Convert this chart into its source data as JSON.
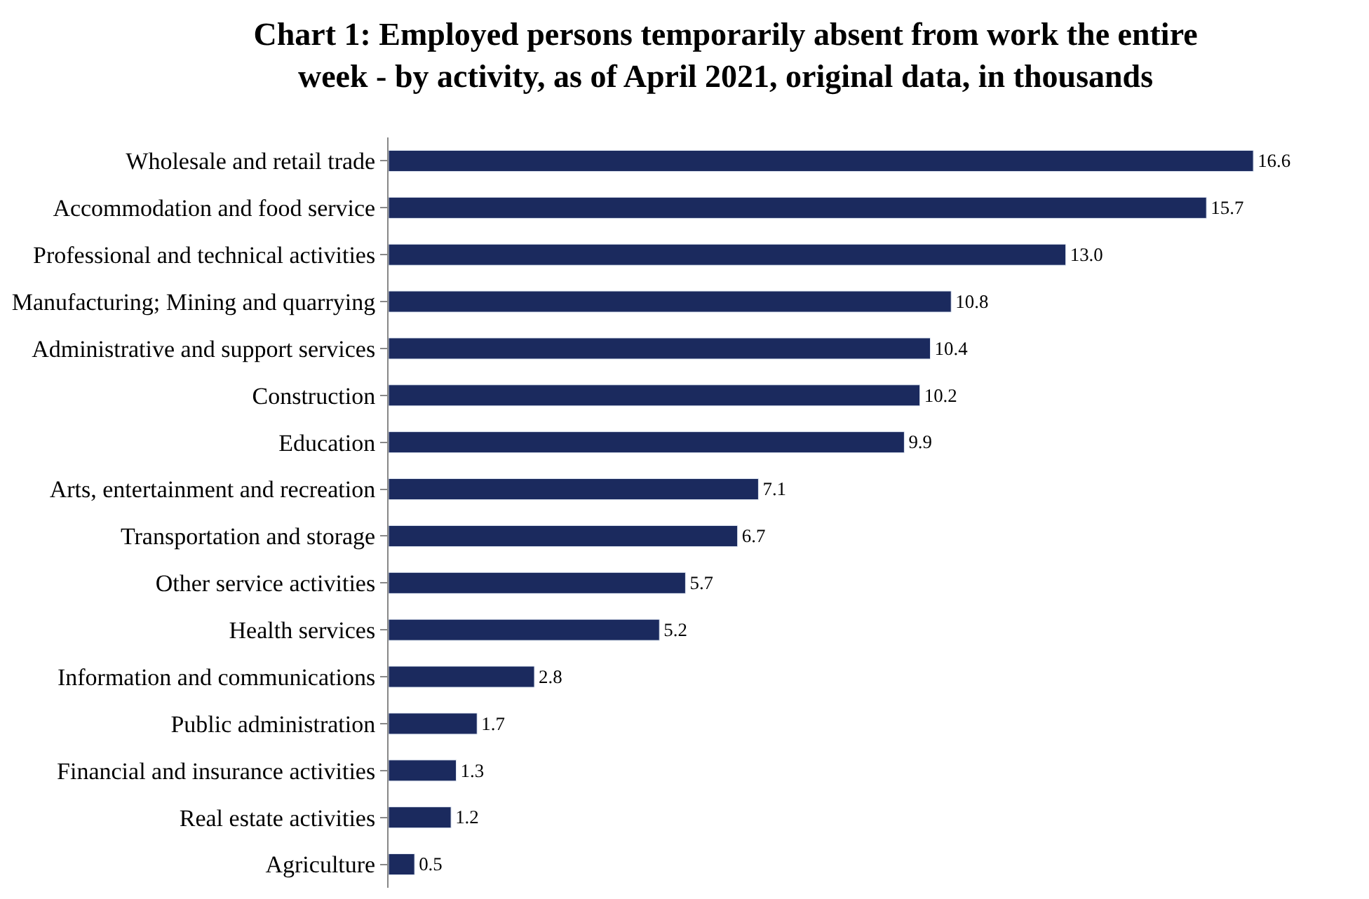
{
  "chart_data": {
    "type": "bar",
    "orientation": "horizontal",
    "title": "Chart 1: Employed persons temporarily absent from work the entire\nweek - by activity, as of April 2021, original data, in thousands",
    "categories": [
      "Wholesale and retail trade",
      "Accommodation and food service",
      "Professional and technical activities",
      "Manufacturing; Mining and quarrying",
      "Administrative and support services",
      "Construction",
      "Education",
      "Arts, entertainment and recreation",
      "Transportation and storage",
      "Other service activities",
      "Health services",
      "Information and communications",
      "Public administration",
      "Financial and insurance activities",
      "Real estate activities",
      "Agriculture"
    ],
    "values": [
      16.6,
      15.7,
      13.0,
      10.8,
      10.4,
      10.2,
      9.9,
      7.1,
      6.7,
      5.7,
      5.2,
      2.8,
      1.7,
      1.3,
      1.2,
      0.5
    ],
    "value_labels": [
      "16.6",
      "15.7",
      "13.0",
      "10.8",
      "10.4",
      "10.2",
      "9.9",
      "7.1",
      "6.7",
      "5.7",
      "5.2",
      "2.8",
      "1.7",
      "1.3",
      "1.2",
      "0.5"
    ],
    "color": "#1b2a5e",
    "legend": false
  }
}
